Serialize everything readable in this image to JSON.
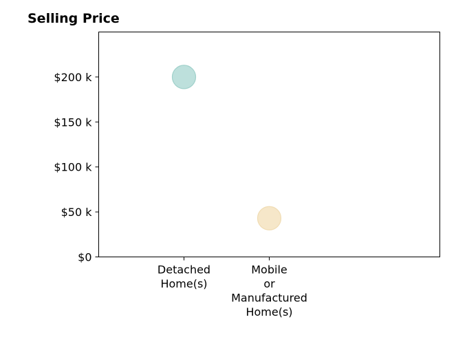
{
  "chart_data": {
    "type": "scatter",
    "title": "Selling Price",
    "xlabel": "",
    "ylabel": "",
    "categories": [
      [
        "Detached",
        "Home(s)"
      ],
      [
        "Mobile",
        "or",
        "Manufactured",
        "Home(s)"
      ]
    ],
    "values": [
      200000,
      43000
    ],
    "point_colors": [
      "#bde0dc",
      "#f6e7c9"
    ],
    "point_stroke_colors": [
      "#9fd0ca",
      "#f0dcb3"
    ],
    "ylim": [
      0,
      250000
    ],
    "yticks": [
      0,
      50000,
      100000,
      150000,
      200000
    ],
    "ytick_labels": [
      "$0",
      "$50 k",
      "$100 k",
      "$150 k",
      "$200 k"
    ],
    "grid": false,
    "legend": "none"
  }
}
